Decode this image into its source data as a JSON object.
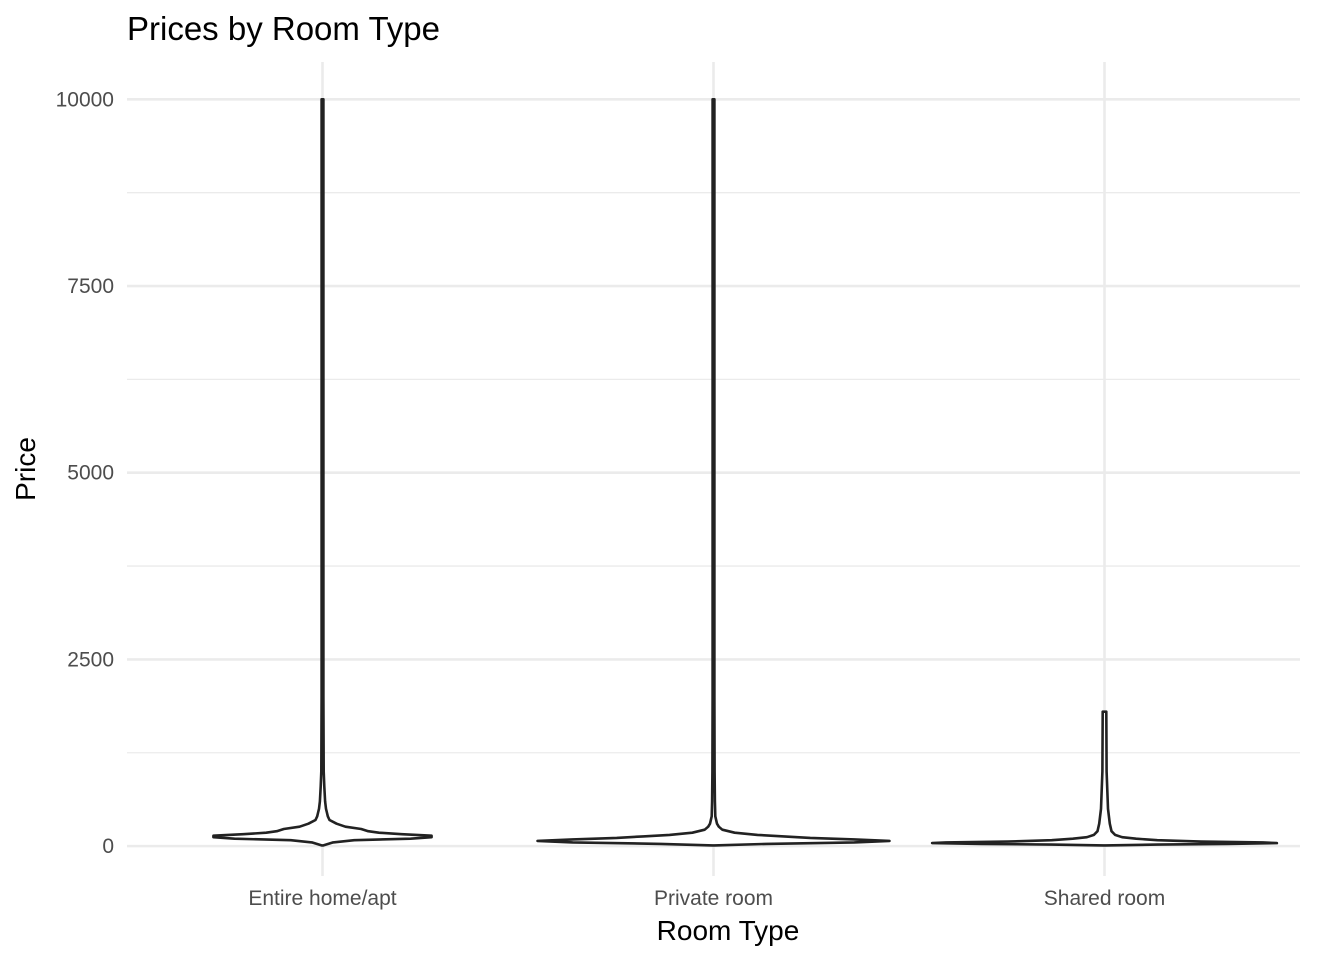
{
  "chart_data": {
    "type": "violin",
    "title": "Prices by Room Type",
    "xlabel": "Room Type",
    "ylabel": "Price",
    "ylim": [
      -400,
      10500
    ],
    "y_ticks": [
      0,
      2500,
      5000,
      7500,
      10000
    ],
    "grid": true,
    "legend": "none",
    "categories": [
      "Entire home/apt",
      "Private room",
      "Shared room"
    ],
    "series": [
      {
        "category": "Entire home/apt",
        "min": 10,
        "max": 10000,
        "density_profile": [
          [
            10,
            0.0
          ],
          [
            50,
            0.06
          ],
          [
            80,
            0.18
          ],
          [
            100,
            0.5
          ],
          [
            120,
            0.62
          ],
          [
            140,
            0.62
          ],
          [
            160,
            0.45
          ],
          [
            180,
            0.32
          ],
          [
            200,
            0.26
          ],
          [
            230,
            0.22
          ],
          [
            260,
            0.13
          ],
          [
            300,
            0.08
          ],
          [
            350,
            0.04
          ],
          [
            400,
            0.03
          ],
          [
            450,
            0.025
          ],
          [
            500,
            0.02
          ],
          [
            600,
            0.015
          ],
          [
            800,
            0.01
          ],
          [
            1000,
            0.007
          ],
          [
            2000,
            0.005
          ],
          [
            10000,
            0.004
          ]
        ]
      },
      {
        "category": "Private room",
        "min": 10,
        "max": 10000,
        "density_profile": [
          [
            10,
            0.0
          ],
          [
            30,
            0.3
          ],
          [
            50,
            0.8
          ],
          [
            70,
            1.0
          ],
          [
            90,
            0.8
          ],
          [
            110,
            0.55
          ],
          [
            130,
            0.4
          ],
          [
            150,
            0.25
          ],
          [
            180,
            0.12
          ],
          [
            220,
            0.05
          ],
          [
            260,
            0.03
          ],
          [
            300,
            0.02
          ],
          [
            400,
            0.01
          ],
          [
            600,
            0.008
          ],
          [
            1000,
            0.006
          ],
          [
            2000,
            0.005
          ],
          [
            10000,
            0.004
          ]
        ]
      },
      {
        "category": "Shared room",
        "min": 10,
        "max": 1800,
        "density_profile": [
          [
            10,
            0.0
          ],
          [
            20,
            0.3
          ],
          [
            30,
            0.7
          ],
          [
            40,
            0.98
          ],
          [
            50,
            0.9
          ],
          [
            60,
            0.55
          ],
          [
            80,
            0.3
          ],
          [
            100,
            0.18
          ],
          [
            120,
            0.1
          ],
          [
            150,
            0.06
          ],
          [
            200,
            0.04
          ],
          [
            300,
            0.03
          ],
          [
            500,
            0.02
          ],
          [
            1000,
            0.012
          ],
          [
            1800,
            0.01
          ]
        ]
      }
    ]
  }
}
